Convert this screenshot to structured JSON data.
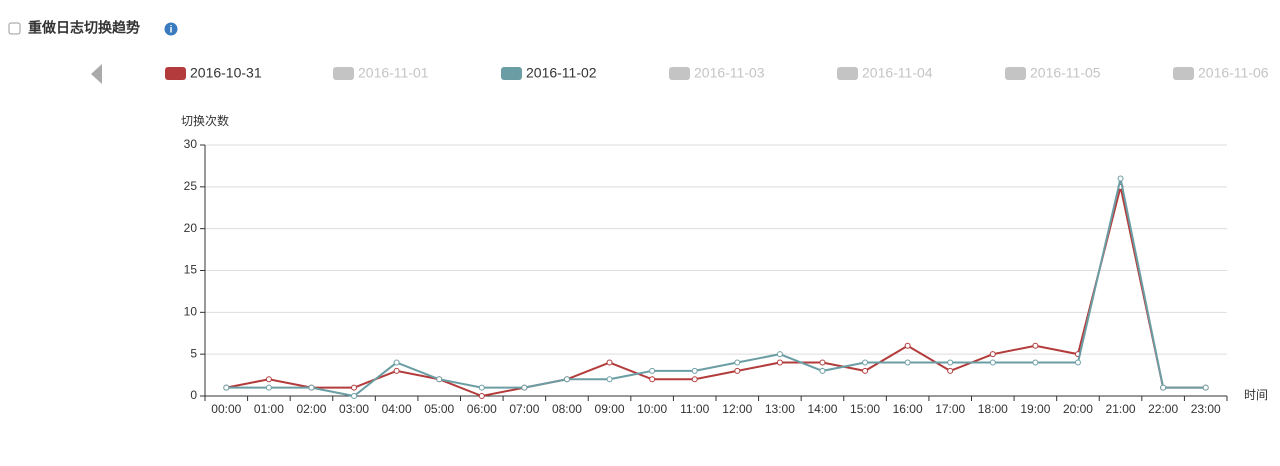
{
  "header": {
    "title": "重做日志切换趋势"
  },
  "chart_data": {
    "type": "line",
    "y_axis_label": "切换次数",
    "x_axis_label": "时间",
    "categories": [
      "00:00",
      "01:00",
      "02:00",
      "03:00",
      "04:00",
      "05:00",
      "06:00",
      "07:00",
      "08:00",
      "09:00",
      "10:00",
      "11:00",
      "12:00",
      "13:00",
      "14:00",
      "15:00",
      "16:00",
      "17:00",
      "18:00",
      "19:00",
      "20:00",
      "21:00",
      "22:00",
      "23:00"
    ],
    "series": [
      {
        "name": "2016-10-31",
        "color": "#b33b3b",
        "visible": true,
        "values": [
          1,
          2,
          1,
          1,
          3,
          2,
          0,
          1,
          2,
          4,
          2,
          2,
          3,
          4,
          4,
          3,
          6,
          3,
          5,
          6,
          5,
          25,
          1,
          1
        ]
      },
      {
        "name": "2016-11-01",
        "color": "#c4c4c4",
        "visible": false
      },
      {
        "name": "2016-11-02",
        "color": "#6b9ea4",
        "visible": true,
        "values": [
          1,
          1,
          1,
          0,
          4,
          2,
          1,
          1,
          2,
          2,
          3,
          3,
          4,
          5,
          3,
          4,
          4,
          4,
          4,
          4,
          4,
          26,
          1,
          1
        ]
      },
      {
        "name": "2016-11-03",
        "color": "#c4c4c4",
        "visible": false
      },
      {
        "name": "2016-11-04",
        "color": "#c4c4c4",
        "visible": false
      },
      {
        "name": "2016-11-05",
        "color": "#c4c4c4",
        "visible": false
      },
      {
        "name": "2016-11-06",
        "color": "#c4c4c4",
        "visible": false
      }
    ],
    "ylim": [
      0,
      30
    ],
    "yticks": [
      0,
      5,
      10,
      15,
      20,
      25,
      30
    ],
    "grid": true,
    "legend": "top"
  }
}
